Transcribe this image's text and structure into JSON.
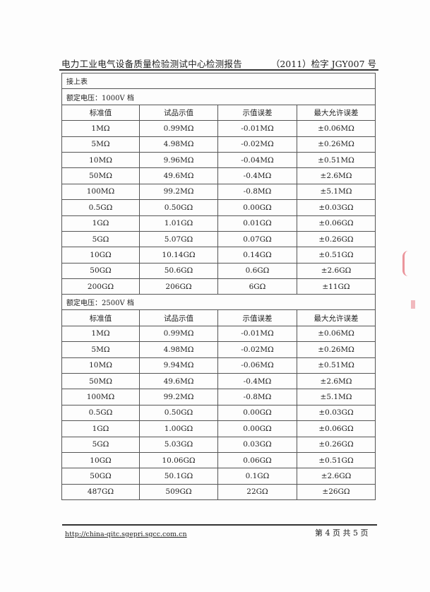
{
  "header": {
    "title": "电力工业电气设备质量检验测试中心检测报告",
    "report_no": "（2011）检字 JGY007 号"
  },
  "continued_label": "接上表",
  "columns": [
    "标准值",
    "试品示值",
    "示值误差",
    "最大允许误差"
  ],
  "sections": [
    {
      "label": "额定电压：1000V 档",
      "rows": [
        [
          "1MΩ",
          "0.99MΩ",
          "-0.01MΩ",
          "±0.06MΩ"
        ],
        [
          "5MΩ",
          "4.98MΩ",
          "-0.02MΩ",
          "±0.26MΩ"
        ],
        [
          "10MΩ",
          "9.96MΩ",
          "-0.04MΩ",
          "±0.51MΩ"
        ],
        [
          "50MΩ",
          "49.6MΩ",
          "-0.4MΩ",
          "±2.6MΩ"
        ],
        [
          "100MΩ",
          "99.2MΩ",
          "-0.8MΩ",
          "±5.1MΩ"
        ],
        [
          "0.5GΩ",
          "0.50GΩ",
          "0.00GΩ",
          "±0.03GΩ"
        ],
        [
          "1GΩ",
          "1.01GΩ",
          "0.01GΩ",
          "±0.06GΩ"
        ],
        [
          "5GΩ",
          "5.07GΩ",
          "0.07GΩ",
          "±0.26GΩ"
        ],
        [
          "10GΩ",
          "10.14GΩ",
          "0.14GΩ",
          "±0.51GΩ"
        ],
        [
          "50GΩ",
          "50.6GΩ",
          "0.6GΩ",
          "±2.6GΩ"
        ],
        [
          "200GΩ",
          "206GΩ",
          "6GΩ",
          "±11GΩ"
        ]
      ]
    },
    {
      "label": "额定电压：2500V 档",
      "rows": [
        [
          "1MΩ",
          "0.99MΩ",
          "-0.01MΩ",
          "±0.06MΩ"
        ],
        [
          "5MΩ",
          "4.98MΩ",
          "-0.02MΩ",
          "±0.26MΩ"
        ],
        [
          "10MΩ",
          "9.94MΩ",
          "-0.06MΩ",
          "±0.51MΩ"
        ],
        [
          "50MΩ",
          "49.6MΩ",
          "-0.4MΩ",
          "±2.6MΩ"
        ],
        [
          "100MΩ",
          "99.2MΩ",
          "-0.8MΩ",
          "±5.1MΩ"
        ],
        [
          "0.5GΩ",
          "0.50GΩ",
          "0.00GΩ",
          "±0.03GΩ"
        ],
        [
          "1GΩ",
          "1.00GΩ",
          "0.00GΩ",
          "±0.06GΩ"
        ],
        [
          "5GΩ",
          "5.03GΩ",
          "0.03GΩ",
          "±0.26GΩ"
        ],
        [
          "10GΩ",
          "10.06GΩ",
          "0.06GΩ",
          "±0.51GΩ"
        ],
        [
          "50GΩ",
          "50.1GΩ",
          "0.1GΩ",
          "±2.6GΩ"
        ],
        [
          "487GΩ",
          "509GΩ",
          "22GΩ",
          "±26GΩ"
        ]
      ]
    }
  ],
  "footer": {
    "url": "http://china-qitc.sgepri.sgcc.com.cn",
    "page": "第 4 页  共 5 页"
  },
  "colors": {
    "stamp": "#e46a74"
  }
}
